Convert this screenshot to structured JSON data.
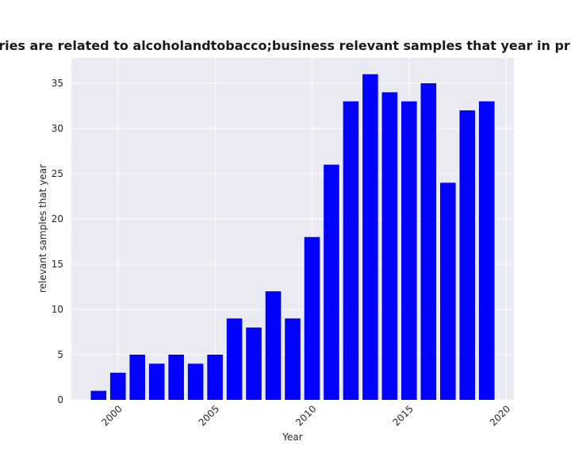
{
  "chart_data": {
    "type": "bar",
    "title": "The categories are related to alcoholandtobacco;business relevant samples that year in privacy policies",
    "xlabel": "Year",
    "ylabel": "relevant samples that year",
    "x": [
      1999,
      2000,
      2001,
      2002,
      2003,
      2004,
      2005,
      2006,
      2007,
      2008,
      2009,
      2010,
      2011,
      2012,
      2013,
      2014,
      2015,
      2016,
      2017,
      2018,
      2019
    ],
    "values": [
      1,
      3,
      5,
      4,
      5,
      4,
      5,
      9,
      8,
      12,
      9,
      18,
      26,
      33,
      36,
      34,
      33,
      35,
      24,
      32,
      33
    ],
    "xlim": [
      1997.6,
      2020.4
    ],
    "ylim": [
      0,
      37.8
    ],
    "xticks": [
      2000,
      2005,
      2010,
      2015,
      2020
    ],
    "yticks": [
      0,
      5,
      10,
      15,
      20,
      25,
      30,
      35
    ],
    "xtick_rotation": 45,
    "bar_color": "#0000ff",
    "plot_background": "#eaeaf2",
    "grid": true,
    "grid_color": "#ffffff"
  }
}
